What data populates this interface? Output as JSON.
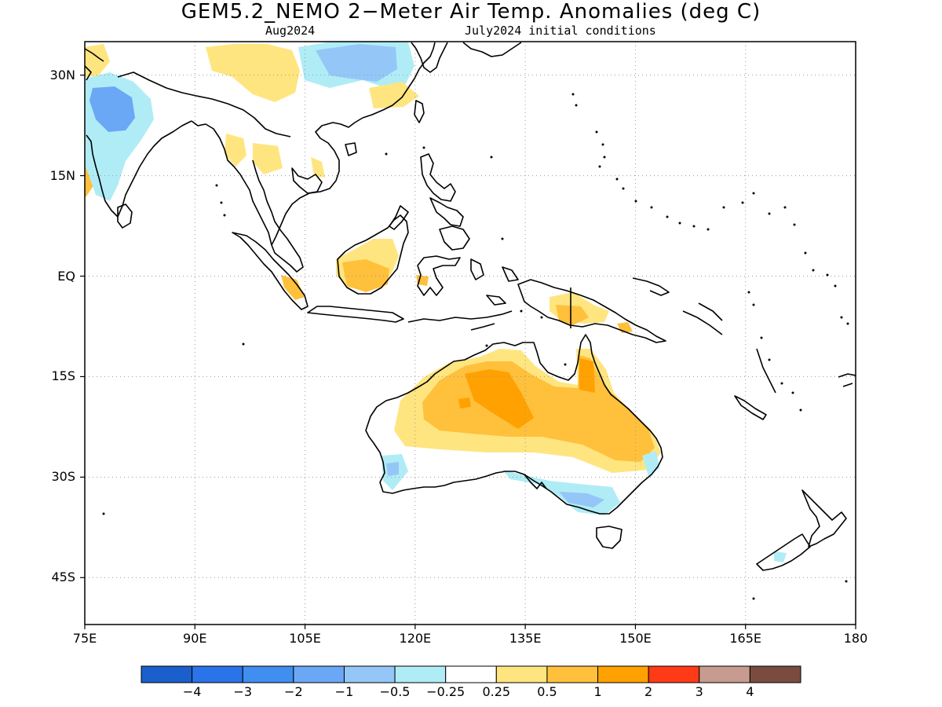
{
  "title": "GEM5.2_NEMO 2−Meter Air Temp. Anomalies (deg C)",
  "subtitle_left": "Aug2024",
  "subtitle_right": "July2024 initial conditions",
  "map": {
    "lon_range": [
      75,
      180
    ],
    "lat_range": [
      -52,
      35
    ],
    "y_ticks": [
      {
        "lat": 30,
        "label": "30N"
      },
      {
        "lat": 15,
        "label": "15N"
      },
      {
        "lat": 0,
        "label": "EQ"
      },
      {
        "lat": -15,
        "label": "15S"
      },
      {
        "lat": -30,
        "label": "30S"
      },
      {
        "lat": -45,
        "label": "45S"
      }
    ],
    "x_ticks": [
      {
        "lon": 75,
        "label": "75E"
      },
      {
        "lon": 90,
        "label": "90E"
      },
      {
        "lon": 105,
        "label": "105E"
      },
      {
        "lon": 120,
        "label": "120E"
      },
      {
        "lon": 135,
        "label": "135E"
      },
      {
        "lon": 150,
        "label": "150E"
      },
      {
        "lon": 165,
        "label": "165E"
      },
      {
        "lon": 180,
        "label": "180"
      }
    ],
    "grid": "dotted"
  },
  "colorbar": {
    "colors": [
      "#1a5fcc",
      "#2b73e8",
      "#3f8ef0",
      "#6aa8f5",
      "#94c7f7",
      "#b0ecf6",
      "#ffffff",
      "#ffe57f",
      "#ffc03c",
      "#ffa100",
      "#ff3a17",
      "#c79b90",
      "#7a4c40"
    ],
    "labels": [
      "−4",
      "−3",
      "−2",
      "−1",
      "−0.5",
      "−0.25",
      "0.25",
      "0.5",
      "1",
      "2",
      "3",
      "4"
    ]
  },
  "legend_colors": {
    "light_orange": "#ffe57f",
    "orange": "#ffc03c",
    "dark_orange": "#ffa100",
    "light_blue": "#6aa8f5",
    "lighter_blue": "#94c7f7",
    "cyan": "#b0ecf6"
  }
}
